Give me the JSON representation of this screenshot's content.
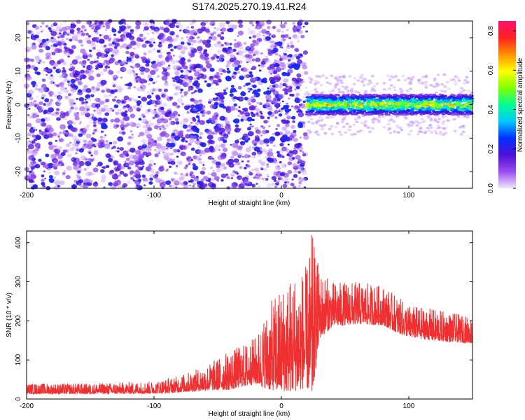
{
  "figure_title": "S174.2025.270.19.41.R24",
  "chart_data": [
    {
      "type": "heatmap",
      "title": "S174.2025.270.19.41.R24",
      "xlabel": "Height of straight line (km)",
      "ylabel": "Frequency (Hz)",
      "xlim": [
        -200,
        150
      ],
      "ylim": [
        -25,
        25
      ],
      "x_ticks": [
        -200,
        -100,
        0,
        100
      ],
      "y_ticks": [
        -20,
        -10,
        0,
        10,
        20
      ],
      "colorbar": {
        "label": "Normalized spectral amplitude",
        "range": [
          0.0,
          0.85
        ],
        "ticks": [
          0.0,
          0.2,
          0.4,
          0.6,
          0.8
        ],
        "colors": [
          "#f0e8fa",
          "#9a4cf0",
          "#4d10d6",
          "#0030ff",
          "#00c8ff",
          "#00ff90",
          "#80ff00",
          "#ffff00",
          "#ff9000",
          "#ff2020",
          "#ff1070"
        ]
      },
      "regions": [
        {
          "name": "scattered noise",
          "x_range": [
            -200,
            20
          ],
          "freq_range": [
            -25,
            25
          ]
        },
        {
          "name": "coherent band",
          "x_range": [
            20,
            150
          ],
          "freq_center": 0,
          "freq_halfwidth": 3,
          "peak_amplitude": 0.85
        }
      ]
    },
    {
      "type": "line",
      "xlabel": "Height of straight line (km)",
      "ylabel": "SNR (10 * v/v)",
      "xlim": [
        -200,
        150
      ],
      "ylim": [
        0,
        430
      ],
      "x_ticks": [
        -200,
        -100,
        0,
        100
      ],
      "y_ticks": [
        0,
        100,
        200,
        300,
        400
      ],
      "color": "#f03030",
      "series": [
        {
          "x": [
            -200,
            -150,
            -100,
            -80,
            -60,
            -40,
            -30,
            -20,
            -10,
            0,
            10,
            20,
            24,
            30,
            40,
            60,
            80,
            90,
            100,
            120,
            150
          ],
          "y": [
            20,
            20,
            22,
            28,
            38,
            50,
            60,
            70,
            80,
            90,
            100,
            110,
            115,
            200,
            215,
            220,
            215,
            195,
            180,
            170,
            160
          ],
          "ymax": [
            40,
            40,
            45,
            60,
            85,
            125,
            140,
            160,
            240,
            290,
            330,
            340,
            430,
            330,
            300,
            300,
            290,
            265,
            240,
            230,
            210
          ]
        }
      ]
    }
  ]
}
